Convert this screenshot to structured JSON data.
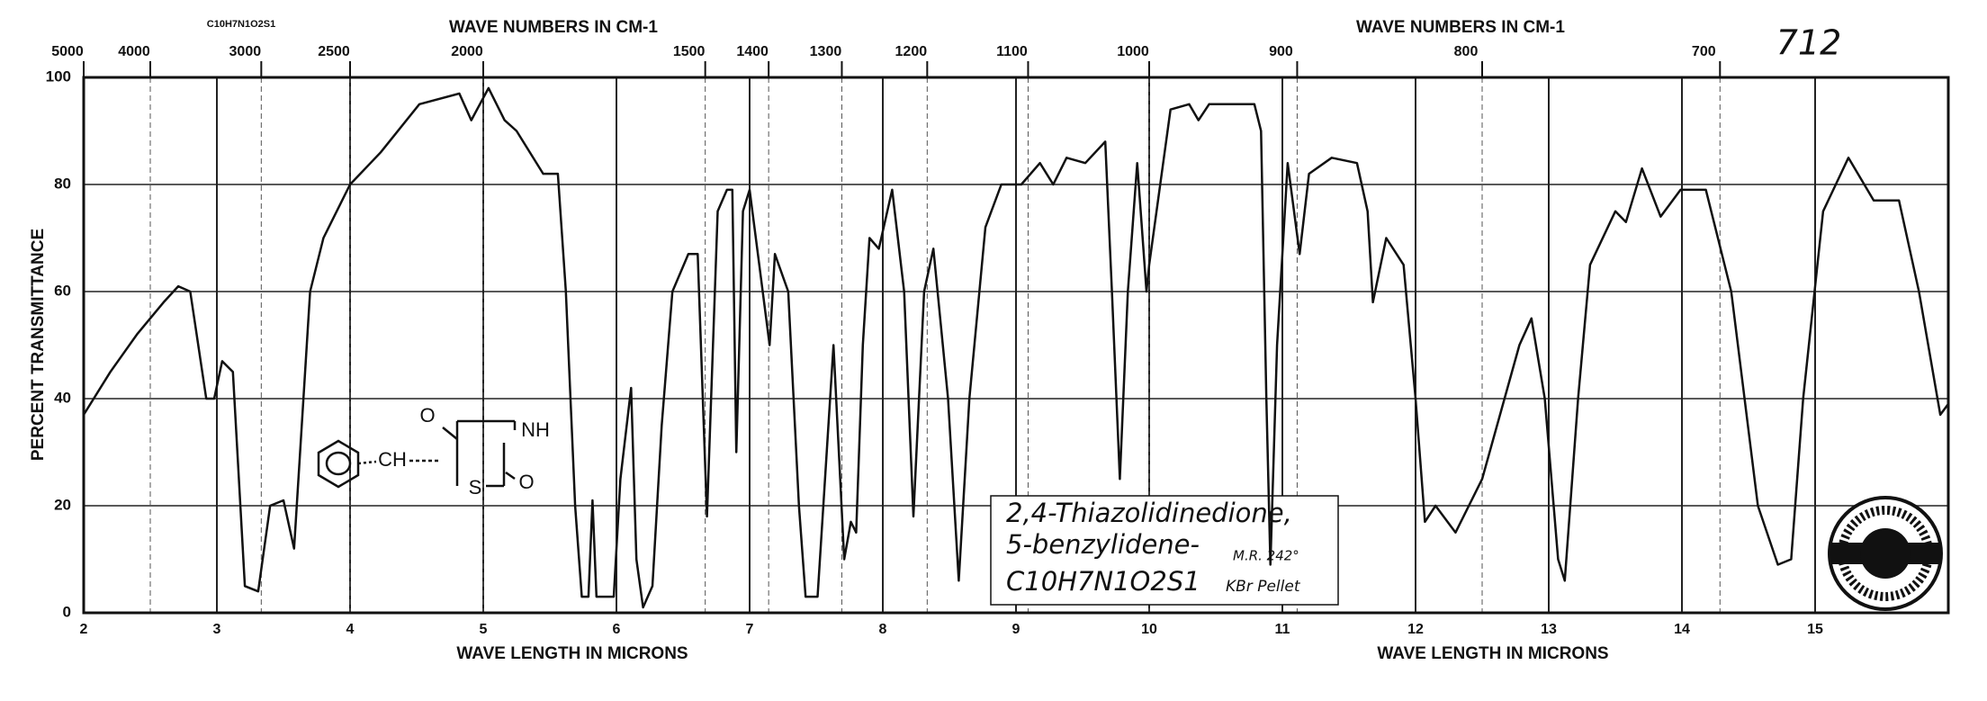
{
  "chart_data": {
    "type": "line",
    "y_label": "PERCENT TRANSMITTANCE",
    "x_labels": [
      "WAVE LENGTH IN MICRONS",
      "WAVE LENGTH IN MICRONS"
    ],
    "x2_labels": [
      "WAVE NUMBERS IN CM-1",
      "WAVE NUMBERS IN CM-1"
    ],
    "formula_top": "C10H7N1O2S1",
    "sheet_number": "712",
    "structure_labels": [
      "O",
      "CH",
      "NH",
      "S",
      "O"
    ],
    "annotations": [
      "2,4-Thiazolidinedione,",
      "5-benzylidene-",
      "C10H7N1O2S1",
      "M.R. 242°",
      "KBr Pellet"
    ],
    "color": "#111111",
    "grid": true,
    "xlim": [
      2,
      16
    ],
    "ylim": [
      0,
      100
    ],
    "xticks": [
      2,
      3,
      4,
      5,
      6,
      7,
      8,
      9,
      10,
      11,
      12,
      13,
      14,
      15
    ],
    "yticks": [
      0,
      20,
      40,
      60,
      80,
      100
    ],
    "x2ticks": [
      5000,
      4000,
      3000,
      2500,
      2000,
      1500,
      1400,
      1300,
      1200,
      1100,
      1000,
      900,
      800,
      700
    ],
    "x": [
      2.0,
      2.2,
      2.4,
      2.6,
      2.71,
      2.8,
      2.92,
      2.98,
      3.04,
      3.12,
      3.21,
      3.31,
      3.4,
      3.5,
      3.58,
      3.7,
      3.8,
      4.0,
      4.23,
      4.52,
      4.82,
      4.91,
      5.04,
      5.16,
      5.25,
      5.45,
      5.56,
      5.62,
      5.69,
      5.74,
      5.79,
      5.82,
      5.85,
      5.98,
      6.03,
      6.11,
      6.15,
      6.2,
      6.27,
      6.34,
      6.42,
      6.54,
      6.61,
      6.68,
      6.76,
      6.83,
      6.87,
      6.9,
      6.95,
      7.0,
      7.15,
      7.19,
      7.29,
      7.37,
      7.42,
      7.51,
      7.63,
      7.71,
      7.76,
      7.8,
      7.85,
      7.9,
      7.97,
      8.07,
      8.16,
      8.23,
      8.31,
      8.38,
      8.49,
      8.57,
      8.65,
      8.77,
      8.89,
      9.04,
      9.18,
      9.28,
      9.38,
      9.52,
      9.67,
      9.72,
      9.78,
      9.84,
      9.91,
      9.98,
      10.0,
      10.16,
      10.3,
      10.37,
      10.45,
      10.79,
      10.84,
      10.88,
      10.91,
      10.96,
      11.04,
      11.13,
      11.2,
      11.37,
      11.56,
      11.64,
      11.68,
      11.78,
      11.91,
      12.0,
      12.07,
      12.15,
      12.3,
      12.5,
      12.78,
      12.87,
      12.97,
      13.07,
      13.12,
      13.22,
      13.31,
      13.5,
      13.58,
      13.7,
      13.84,
      13.99,
      14.18,
      14.37,
      14.57,
      14.72,
      14.82,
      14.91,
      15.06,
      15.25,
      15.44,
      15.63,
      15.78,
      15.94,
      16.0
    ],
    "values": [
      37,
      45,
      52,
      58,
      61,
      60,
      40,
      40,
      47,
      45,
      5,
      4,
      20,
      21,
      12,
      60,
      70,
      80,
      86,
      95,
      97,
      92,
      98,
      92,
      90,
      82,
      82,
      60,
      20,
      3,
      3,
      21,
      3,
      3,
      25,
      42,
      10,
      1,
      5,
      35,
      60,
      67,
      67,
      18,
      75,
      79,
      79,
      30,
      75,
      79,
      50,
      67,
      60,
      20,
      3,
      3,
      50,
      10,
      17,
      15,
      50,
      70,
      68,
      79,
      60,
      18,
      60,
      68,
      40,
      6,
      40,
      72,
      80,
      80,
      84,
      80,
      85,
      84,
      88,
      60,
      25,
      60,
      84,
      60,
      65,
      94,
      95,
      92,
      95,
      95,
      90,
      40,
      9,
      50,
      84,
      67,
      82,
      85,
      84,
      75,
      58,
      70,
      65,
      40,
      17,
      20,
      15,
      25,
      50,
      55,
      40,
      10,
      6,
      40,
      65,
      75,
      73,
      83,
      74,
      79,
      79,
      60,
      20,
      9,
      10,
      40,
      75,
      85,
      77,
      77,
      60,
      37,
      39
    ]
  }
}
